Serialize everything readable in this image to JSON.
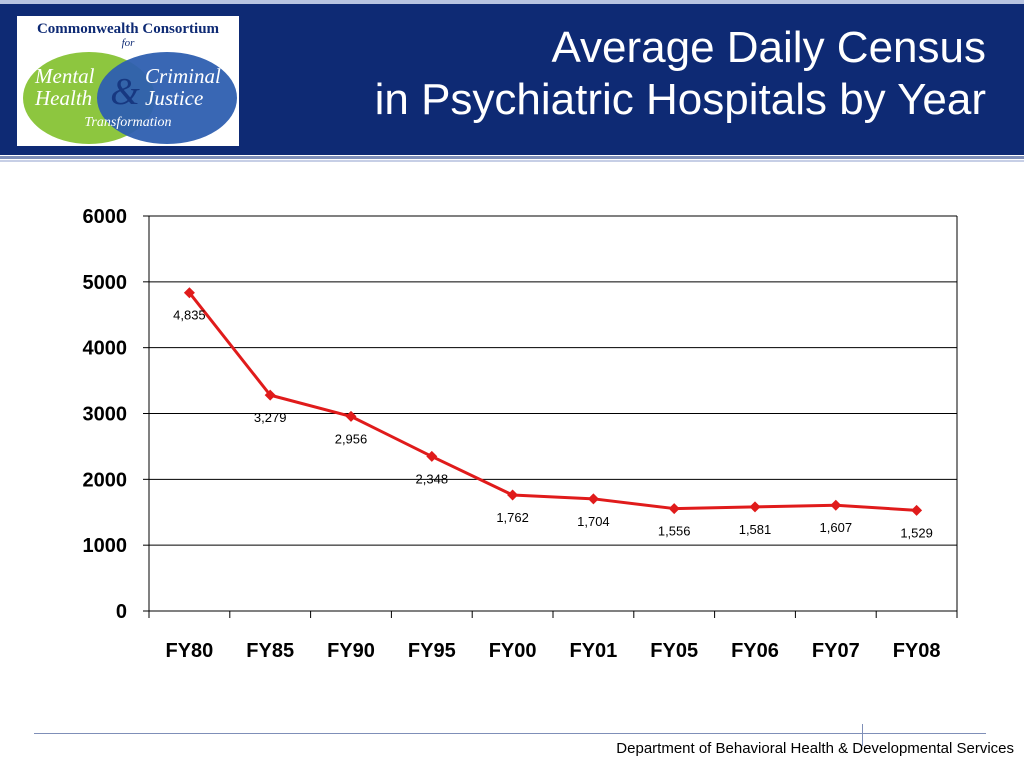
{
  "logo": {
    "line1": "Commonwealth Consortium",
    "line2": "for",
    "left_words": [
      "Mental",
      "Health"
    ],
    "right_words": [
      "Criminal",
      "Justice"
    ],
    "ampersand": "&",
    "bottom": "Transformation",
    "colors": {
      "green": "#8dc63f",
      "blue": "#2e5fb0",
      "text": "#0e2a74"
    }
  },
  "header": {
    "title_line1": "Average Daily Census",
    "title_line2": "in Psychiatric Hospitals by Year",
    "background": "#0e2a74"
  },
  "chart_data": {
    "type": "line",
    "categories": [
      "FY80",
      "FY85",
      "FY90",
      "FY95",
      "FY00",
      "FY01",
      "FY05",
      "FY06",
      "FY07",
      "FY08"
    ],
    "series": [
      {
        "values": [
          4835,
          3279,
          2956,
          2348,
          1762,
          1704,
          1556,
          1581,
          1607,
          1529
        ],
        "labels": [
          "4,835",
          "3,279",
          "2,956",
          "2,348",
          "1,762",
          "1,704",
          "1,556",
          "1,581",
          "1,607",
          "1,529"
        ],
        "color": "#e01b1b",
        "marker": "diamond"
      }
    ],
    "y_ticks": [
      "0",
      "1000",
      "2000",
      "3000",
      "4000",
      "5000",
      "6000"
    ],
    "ylim": [
      0,
      6000
    ],
    "y_step": 1000,
    "grid": "horizontal",
    "legend": "none",
    "title": "",
    "xlabel": "",
    "ylabel": ""
  },
  "footer": {
    "text": "Department of Behavioral Health & Developmental Services"
  }
}
